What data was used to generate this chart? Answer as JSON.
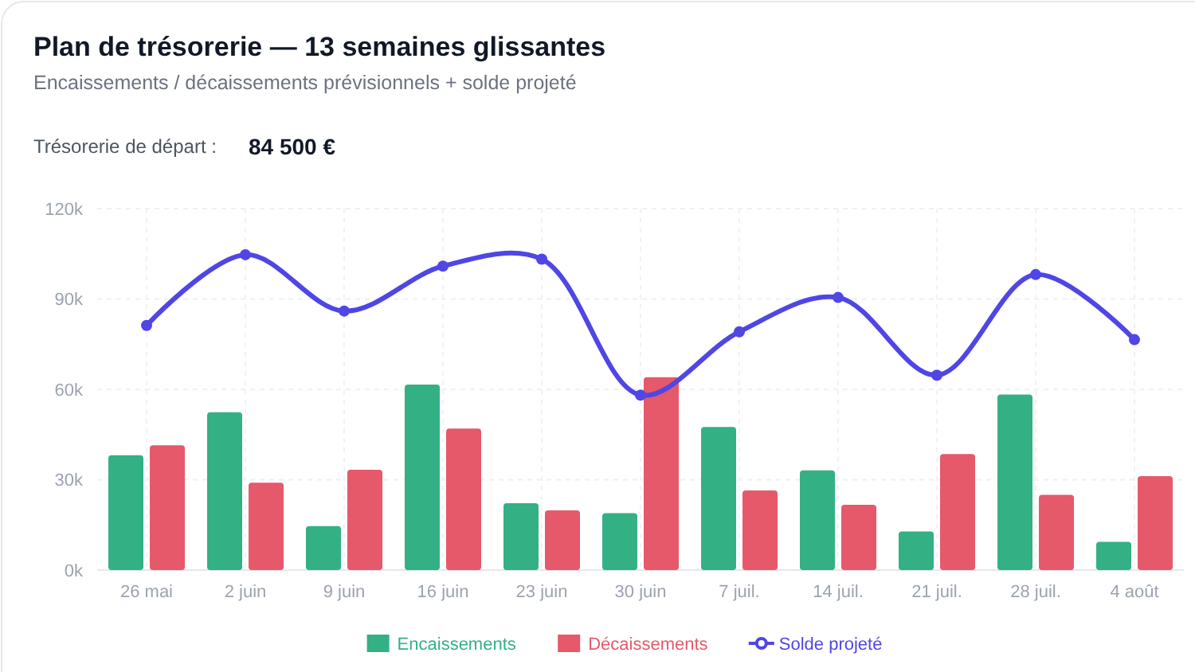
{
  "chart_data": {
    "type": "bar",
    "title": "Plan de trésorerie — 13 semaines glissantes",
    "subtitle": "Encaissements / décaissements prévisionnels + solde projeté",
    "annotations": [
      "Trésorerie de départ :",
      "84 500 €"
    ],
    "categories": [
      "26 mai",
      "2 juin",
      "9 juin",
      "16 juin",
      "23 juin",
      "30 juin",
      "7 juil.",
      "14 juil.",
      "21 juil.",
      "28 juil.",
      "4 août"
    ],
    "series": [
      {
        "name": "Encaissements",
        "color": "#33b184",
        "values": [
          38.1,
          52.4,
          14.6,
          61.6,
          22.2,
          18.9,
          47.5,
          33.1,
          12.8,
          58.3,
          9.4
        ]
      },
      {
        "name": "Décaissements",
        "color": "#e5596a",
        "values": [
          41.4,
          29.0,
          33.3,
          47.0,
          19.8,
          64.0,
          26.4,
          21.7,
          38.5,
          25.0,
          31.2
        ]
      },
      {
        "name": "Solde projeté",
        "type": "line",
        "color": "#4f46e5",
        "values": [
          81.2,
          104.7,
          86.0,
          100.9,
          103.2,
          58.1,
          79.1,
          90.5,
          64.7,
          98.1,
          76.5
        ]
      }
    ],
    "ylim": [
      0,
      120
    ],
    "yticks": [
      {
        "value": 0,
        "label": "0k"
      },
      {
        "value": 30,
        "label": "30k"
      },
      {
        "value": 60,
        "label": "60k"
      },
      {
        "value": 90,
        "label": "90k"
      },
      {
        "value": 120,
        "label": "120k"
      }
    ],
    "grid": true,
    "legend": "bottom",
    "marker": "circle",
    "line_style": "solid"
  }
}
